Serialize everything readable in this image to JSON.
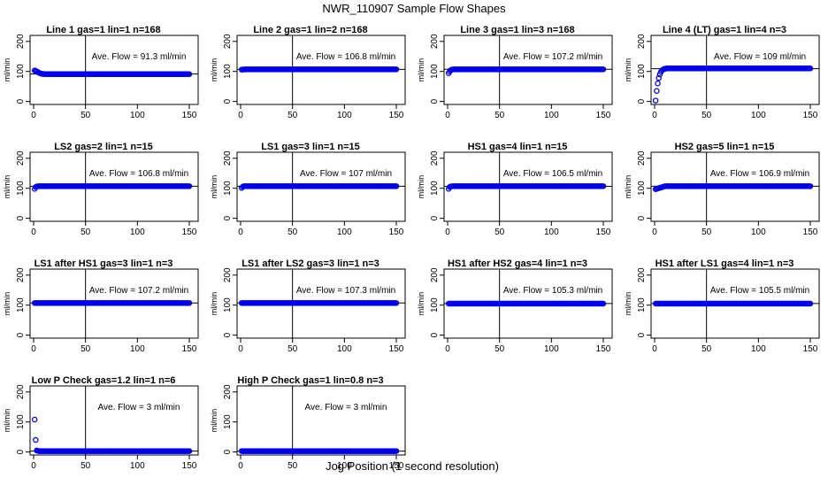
{
  "title": "NWR_110907  Sample Flow Shapes",
  "xlabel": "Jog Position (1 second resolution)",
  "colors": {
    "points": "#0000ee",
    "axes": "#000000"
  },
  "chart_data": [
    {
      "type": "scatter",
      "title": "Line 1 gas=1 lin=1 n=168",
      "ylabel": "ml/min",
      "xlim": [
        0,
        150
      ],
      "ylim": [
        -10,
        220
      ],
      "xticks": [
        "0",
        "50",
        "100",
        "150"
      ],
      "yticks": [
        "0",
        "100",
        "200"
      ],
      "vline_x": 50,
      "hline_y": 91.3,
      "annotation": "Ave. Flow = 91.3  ml/min",
      "x": [
        1,
        2,
        3,
        4,
        5,
        6,
        7,
        8,
        9,
        10,
        12,
        15,
        20,
        30,
        40,
        50,
        60,
        70,
        80,
        90,
        100,
        110,
        120,
        130,
        140,
        150
      ],
      "y": [
        103,
        102,
        100,
        98,
        96,
        94,
        93,
        92,
        92,
        91,
        91,
        91,
        91,
        91,
        91,
        91,
        91,
        91,
        91,
        91,
        91,
        91,
        91,
        91,
        91,
        91
      ]
    },
    {
      "type": "scatter",
      "title": "Line 2 gas=1 lin=2 n=168",
      "ylabel": "ml/min",
      "xlim": [
        0,
        150
      ],
      "ylim": [
        -10,
        220
      ],
      "xticks": [
        "0",
        "50",
        "100",
        "150"
      ],
      "yticks": [
        "0",
        "100",
        "200"
      ],
      "vline_x": 50,
      "hline_y": 106.8,
      "annotation": "Ave. Flow = 106.8  ml/min",
      "x": [
        1,
        5,
        10,
        20,
        30,
        40,
        50,
        60,
        70,
        80,
        90,
        100,
        110,
        120,
        130,
        140,
        150
      ],
      "y": [
        106,
        107,
        107,
        107,
        107,
        107,
        107,
        107,
        107,
        107,
        107,
        107,
        107,
        107,
        107,
        107,
        107
      ]
    },
    {
      "type": "scatter",
      "title": "Line 3 gas=1 lin=3 n=168",
      "ylabel": "ml/min",
      "xlim": [
        0,
        150
      ],
      "ylim": [
        -10,
        220
      ],
      "xticks": [
        "0",
        "50",
        "100",
        "150"
      ],
      "yticks": [
        "0",
        "100",
        "200"
      ],
      "vline_x": 50,
      "hline_y": 107.2,
      "annotation": "Ave. Flow = 107.2  ml/min",
      "x": [
        1,
        2,
        3,
        4,
        6,
        10,
        20,
        30,
        40,
        50,
        60,
        70,
        80,
        90,
        100,
        110,
        120,
        130,
        140,
        150
      ],
      "y": [
        94,
        100,
        104,
        106,
        107,
        107,
        107,
        107,
        107,
        107,
        107,
        107,
        107,
        107,
        107,
        107,
        107,
        107,
        107,
        107
      ]
    },
    {
      "type": "scatter",
      "title": "Line 4 (LT) gas=1 lin=4 n=3",
      "ylabel": "ml/min",
      "xlim": [
        0,
        150
      ],
      "ylim": [
        -10,
        220
      ],
      "xticks": [
        "0",
        "50",
        "100",
        "150"
      ],
      "yticks": [
        "0",
        "100",
        "200"
      ],
      "vline_x": 50,
      "hline_y": 109,
      "annotation": "Ave. Flow = 109  ml/min",
      "x": [
        1,
        2,
        3,
        4,
        5,
        6,
        7,
        8,
        9,
        10,
        12,
        15,
        20,
        30,
        40,
        50,
        60,
        70,
        80,
        90,
        100,
        110,
        120,
        130,
        140,
        150
      ],
      "y": [
        3,
        35,
        60,
        78,
        90,
        98,
        103,
        106,
        108,
        109,
        110,
        110,
        110,
        110,
        110,
        110,
        110,
        110,
        110,
        110,
        110,
        110,
        110,
        110,
        110,
        110
      ]
    },
    {
      "type": "scatter",
      "title": "LS2 gas=2 lin=1 n=15",
      "ylabel": "ml/min",
      "xlim": [
        0,
        150
      ],
      "ylim": [
        -10,
        220
      ],
      "xticks": [
        "0",
        "50",
        "100",
        "150"
      ],
      "yticks": [
        "0",
        "100",
        "200"
      ],
      "vline_x": 50,
      "hline_y": 106.8,
      "annotation": "Ave. Flow = 106.8  ml/min",
      "x": [
        1,
        2,
        3,
        5,
        10,
        20,
        30,
        40,
        50,
        60,
        70,
        80,
        90,
        100,
        110,
        120,
        130,
        140,
        150
      ],
      "y": [
        98,
        104,
        106,
        107,
        107,
        107,
        107,
        107,
        107,
        107,
        107,
        107,
        107,
        107,
        107,
        107,
        107,
        107,
        107
      ]
    },
    {
      "type": "scatter",
      "title": "LS1 gas=3 lin=1 n=15",
      "ylabel": "ml/min",
      "xlim": [
        0,
        150
      ],
      "ylim": [
        -10,
        220
      ],
      "xticks": [
        "0",
        "50",
        "100",
        "150"
      ],
      "yticks": [
        "0",
        "100",
        "200"
      ],
      "vline_x": 50,
      "hline_y": 107,
      "annotation": "Ave. Flow = 107  ml/min",
      "x": [
        1,
        2,
        3,
        5,
        10,
        20,
        30,
        40,
        50,
        60,
        70,
        80,
        90,
        100,
        110,
        120,
        130,
        140,
        150
      ],
      "y": [
        101,
        105,
        107,
        107,
        107,
        107,
        107,
        107,
        107,
        107,
        107,
        107,
        107,
        107,
        107,
        107,
        107,
        107,
        107
      ]
    },
    {
      "type": "scatter",
      "title": "HS1 gas=4 lin=1 n=15",
      "ylabel": "ml/min",
      "xlim": [
        0,
        150
      ],
      "ylim": [
        -10,
        220
      ],
      "xticks": [
        "0",
        "50",
        "100",
        "150"
      ],
      "yticks": [
        "0",
        "100",
        "200"
      ],
      "vline_x": 50,
      "hline_y": 106.5,
      "annotation": "Ave. Flow = 106.5  ml/min",
      "x": [
        1,
        2,
        3,
        5,
        10,
        20,
        30,
        40,
        50,
        60,
        70,
        80,
        90,
        100,
        110,
        120,
        130,
        140,
        150
      ],
      "y": [
        98,
        104,
        106,
        107,
        107,
        107,
        107,
        107,
        107,
        107,
        107,
        107,
        107,
        107,
        107,
        107,
        107,
        107,
        107
      ]
    },
    {
      "type": "scatter",
      "title": "HS2 gas=5 lin=1 n=15",
      "ylabel": "ml/min",
      "xlim": [
        0,
        150
      ],
      "ylim": [
        -10,
        220
      ],
      "xticks": [
        "0",
        "50",
        "100",
        "150"
      ],
      "yticks": [
        "0",
        "100",
        "200"
      ],
      "vline_x": 50,
      "hline_y": 106.9,
      "annotation": "Ave. Flow = 106.9  ml/min",
      "x": [
        1,
        10,
        20,
        40,
        50,
        60,
        70,
        80,
        90,
        100,
        110,
        120,
        130,
        140,
        150
      ],
      "y": [
        97,
        107,
        107,
        107,
        107,
        107,
        107,
        107,
        107,
        107,
        107,
        107,
        107,
        107,
        107
      ]
    },
    {
      "type": "scatter",
      "title": "LS1 after HS1 gas=3 lin=1 n=3",
      "ylabel": "ml/min",
      "xlim": [
        0,
        150
      ],
      "ylim": [
        -10,
        220
      ],
      "xticks": [
        "0",
        "50",
        "100",
        "150"
      ],
      "yticks": [
        "0",
        "100",
        "200"
      ],
      "vline_x": 50,
      "hline_y": 107.2,
      "annotation": "Ave. Flow = 107.2  ml/min",
      "x": [
        1,
        10,
        20,
        30,
        40,
        50,
        60,
        70,
        80,
        90,
        100,
        110,
        120,
        130,
        140,
        150
      ],
      "y": [
        107,
        107,
        107,
        107,
        107,
        107,
        107,
        107,
        107,
        107,
        107,
        107,
        107,
        107,
        107,
        107
      ]
    },
    {
      "type": "scatter",
      "title": "LS1 after LS2 gas=3 lin=1 n=3",
      "ylabel": "ml/min",
      "xlim": [
        0,
        150
      ],
      "ylim": [
        -10,
        220
      ],
      "xticks": [
        "0",
        "50",
        "100",
        "150"
      ],
      "yticks": [
        "0",
        "100",
        "200"
      ],
      "vline_x": 50,
      "hline_y": 107.3,
      "annotation": "Ave. Flow = 107.3  ml/min",
      "x": [
        1,
        10,
        20,
        30,
        40,
        50,
        60,
        70,
        80,
        90,
        100,
        110,
        120,
        130,
        140,
        150
      ],
      "y": [
        107,
        107,
        107,
        107,
        107,
        107,
        107,
        107,
        107,
        107,
        107,
        107,
        107,
        107,
        107,
        107
      ]
    },
    {
      "type": "scatter",
      "title": "HS1 after HS2 gas=4 lin=1 n=3",
      "ylabel": "ml/min",
      "xlim": [
        0,
        150
      ],
      "ylim": [
        -10,
        220
      ],
      "xticks": [
        "0",
        "50",
        "100",
        "150"
      ],
      "yticks": [
        "0",
        "100",
        "200"
      ],
      "vline_x": 50,
      "hline_y": 105.3,
      "annotation": "Ave. Flow = 105.3  ml/min",
      "x": [
        1,
        10,
        20,
        30,
        40,
        50,
        60,
        70,
        80,
        90,
        100,
        110,
        120,
        130,
        140,
        150
      ],
      "y": [
        105,
        105,
        105,
        105,
        105,
        105,
        105,
        105,
        105,
        105,
        105,
        105,
        105,
        105,
        105,
        105
      ]
    },
    {
      "type": "scatter",
      "title": "HS1 after LS1 gas=4 lin=1 n=3",
      "ylabel": "ml/min",
      "xlim": [
        0,
        150
      ],
      "ylim": [
        -10,
        220
      ],
      "xticks": [
        "0",
        "50",
        "100",
        "150"
      ],
      "yticks": [
        "0",
        "100",
        "200"
      ],
      "vline_x": 50,
      "hline_y": 105.5,
      "annotation": "Ave. Flow = 105.5  ml/min",
      "x": [
        1,
        10,
        20,
        30,
        40,
        50,
        60,
        70,
        80,
        90,
        100,
        110,
        120,
        130,
        140,
        150
      ],
      "y": [
        105,
        105,
        105,
        105,
        105,
        105,
        105,
        105,
        105,
        105,
        105,
        105,
        105,
        105,
        105,
        105
      ]
    },
    {
      "type": "scatter",
      "title": "Low P Check gas=1.2 lin=1 n=6",
      "ylabel": "ml/min",
      "xlim": [
        0,
        150
      ],
      "ylim": [
        -10,
        220
      ],
      "xticks": [
        "0",
        "50",
        "100",
        "150"
      ],
      "yticks": [
        "0",
        "100",
        "200"
      ],
      "vline_x": 50,
      "hline_y": 3,
      "annotation": "Ave. Flow =  3  ml/min",
      "x": [
        1,
        2,
        3,
        5,
        10,
        20,
        30,
        40,
        50,
        60,
        70,
        80,
        90,
        100,
        110,
        120,
        130,
        140,
        150
      ],
      "y": [
        108,
        40,
        5,
        3,
        3,
        3,
        3,
        3,
        3,
        3,
        3,
        3,
        3,
        3,
        3,
        3,
        3,
        3,
        3
      ]
    },
    {
      "type": "scatter",
      "title": "High P Check gas=1 lin=0.8 n=3",
      "ylabel": "ml/min",
      "xlim": [
        0,
        150
      ],
      "ylim": [
        -10,
        220
      ],
      "xticks": [
        "0",
        "50",
        "100",
        "150"
      ],
      "yticks": [
        "0",
        "100",
        "200"
      ],
      "vline_x": 50,
      "hline_y": 3,
      "annotation": "Ave. Flow =  3  ml/min",
      "x": [
        1,
        10,
        20,
        30,
        40,
        50,
        60,
        70,
        80,
        90,
        100,
        110,
        120,
        130,
        140,
        150
      ],
      "y": [
        3,
        3,
        3,
        3,
        3,
        3,
        3,
        3,
        3,
        3,
        3,
        3,
        3,
        3,
        3,
        3
      ]
    }
  ]
}
